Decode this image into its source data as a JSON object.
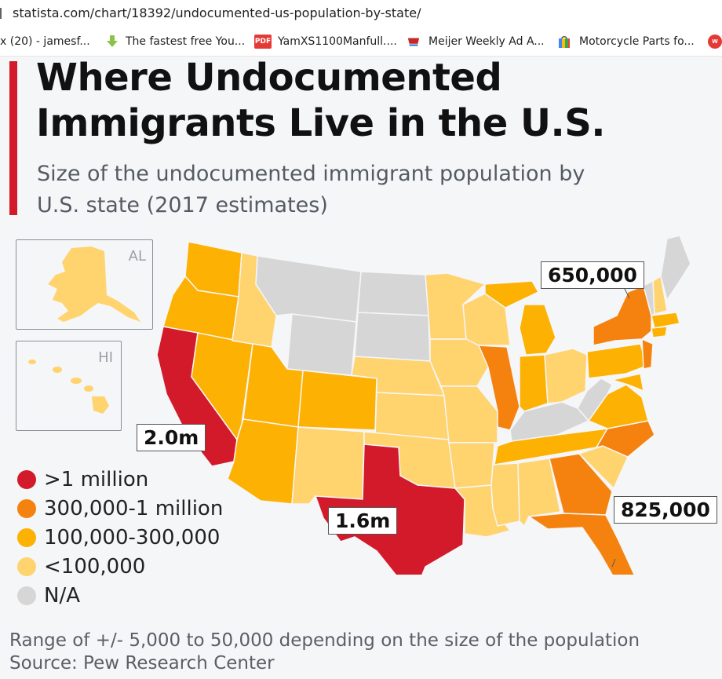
{
  "browser": {
    "url": "statista.com/chart/18392/undocumented-us-population-by-state/",
    "bookmarks": [
      {
        "label": "x (20) - jamesf...",
        "icon": "mail-icon"
      },
      {
        "label": "The fastest free You...",
        "icon": "download-arrow-icon"
      },
      {
        "label": "YamXS1100Manfull....",
        "icon": "pdf-icon"
      },
      {
        "label": "Meijer Weekly Ad A...",
        "icon": "meijer-icon"
      },
      {
        "label": "Motorcycle Parts fo...",
        "icon": "shopping-bag-icon"
      }
    ],
    "bookmark_icon_text": {
      "pdf": "PDF"
    }
  },
  "chart": {
    "title_line1": "Where Undocumented",
    "title_line2": "Immigrants Live in the U.S.",
    "subtitle": "Size of the undocumented immigrant population by U.S. state (2017 estimates)",
    "inset_alaska": "AL",
    "inset_hawaii": "HI",
    "callouts": {
      "california": "2.0m",
      "texas": "1.6m",
      "new_york": "650,000",
      "florida": "825,000"
    },
    "legend": [
      {
        "label": ">1 million",
        "color": "#d31a2a"
      },
      {
        "label": "300,000-1 million",
        "color": "#f5820e"
      },
      {
        "label": "100,000-300,000",
        "color": "#fdb102"
      },
      {
        "label": "<100,000",
        "color": "#ffd36e"
      },
      {
        "label": "N/A",
        "color": "#d6d6d6"
      }
    ],
    "footnote_line1": "Range of +/- 5,000 to 50,000 depending on the size of the population",
    "footnote_line2": "Source: Pew Research Center"
  },
  "colors": {
    "accent_red": "#d31a2a",
    "tier_orange": "#f5820e",
    "tier_amber": "#fdb102",
    "tier_light": "#ffd36e",
    "tier_na": "#d6d6d6"
  }
}
